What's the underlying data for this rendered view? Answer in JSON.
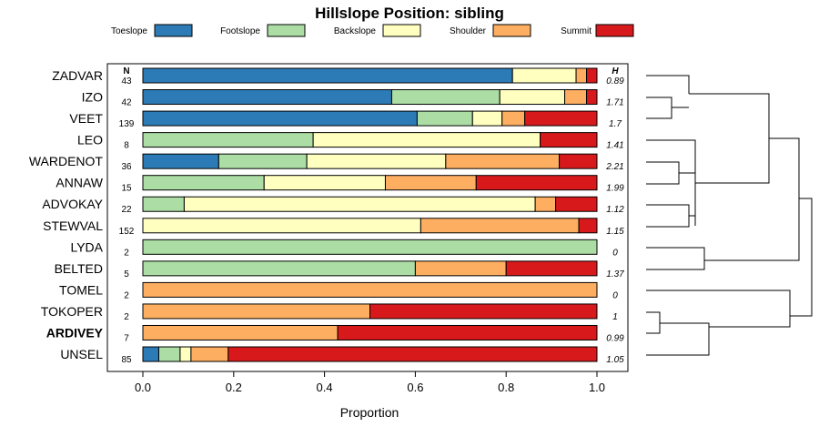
{
  "chart_data": {
    "type": "bar",
    "orientation": "horizontal-stacked",
    "title": "Hillslope Position: sibling",
    "xlabel": "Proportion",
    "xlim": [
      0,
      1
    ],
    "x_ticks": [
      "0.0",
      "0.2",
      "0.4",
      "0.6",
      "0.8",
      "1.0"
    ],
    "n_header": "N",
    "h_header": "H",
    "legend": [
      {
        "name": "Toeslope",
        "color": "#2c7bb6"
      },
      {
        "name": "Footslope",
        "color": "#abdda4"
      },
      {
        "name": "Backslope",
        "color": "#ffffbf"
      },
      {
        "name": "Shoulder",
        "color": "#fdae61"
      },
      {
        "name": "Summit",
        "color": "#d7191c"
      }
    ],
    "rows": [
      {
        "name": "ZADVAR",
        "n": "43",
        "h": "0.89",
        "bold": false,
        "values": [
          0.814,
          0,
          0.14,
          0.023,
          0.023
        ]
      },
      {
        "name": "IZO",
        "n": "42",
        "h": "1.71",
        "bold": false,
        "values": [
          0.548,
          0.238,
          0.143,
          0.048,
          0.023
        ]
      },
      {
        "name": "VEET",
        "n": "139",
        "h": "1.7",
        "bold": false,
        "values": [
          0.604,
          0.122,
          0.065,
          0.05,
          0.159
        ]
      },
      {
        "name": "LEO",
        "n": "8",
        "h": "1.41",
        "bold": false,
        "values": [
          0,
          0.375,
          0.5,
          0,
          0.125
        ]
      },
      {
        "name": "WARDENOT",
        "n": "36",
        "h": "2.21",
        "bold": false,
        "values": [
          0.167,
          0.194,
          0.306,
          0.25,
          0.083
        ]
      },
      {
        "name": "ANNAW",
        "n": "15",
        "h": "1.99",
        "bold": false,
        "values": [
          0,
          0.267,
          0.267,
          0.2,
          0.266
        ]
      },
      {
        "name": "ADVOKAY",
        "n": "22",
        "h": "1.12",
        "bold": false,
        "values": [
          0,
          0.091,
          0.773,
          0.045,
          0.091
        ]
      },
      {
        "name": "STEWVAL",
        "n": "152",
        "h": "1.15",
        "bold": false,
        "values": [
          0,
          0,
          0.612,
          0.348,
          0.04
        ]
      },
      {
        "name": "LYDA",
        "n": "2",
        "h": "0",
        "bold": false,
        "values": [
          0,
          1.0,
          0,
          0,
          0
        ]
      },
      {
        "name": "BELTED",
        "n": "5",
        "h": "1.37",
        "bold": false,
        "values": [
          0,
          0.6,
          0,
          0.2,
          0.2
        ]
      },
      {
        "name": "TOMEL",
        "n": "2",
        "h": "0",
        "bold": false,
        "values": [
          0,
          0,
          0,
          1.0,
          0
        ]
      },
      {
        "name": "TOKOPER",
        "n": "2",
        "h": "1",
        "bold": false,
        "values": [
          0,
          0,
          0,
          0.5,
          0.5
        ]
      },
      {
        "name": "ARDIVEY",
        "n": "7",
        "h": "0.99",
        "bold": true,
        "values": [
          0,
          0,
          0,
          0.429,
          0.571
        ]
      },
      {
        "name": "UNSEL",
        "n": "85",
        "h": "1.05",
        "bold": false,
        "values": [
          0.035,
          0.047,
          0.024,
          0.082,
          0.812
        ]
      }
    ]
  }
}
